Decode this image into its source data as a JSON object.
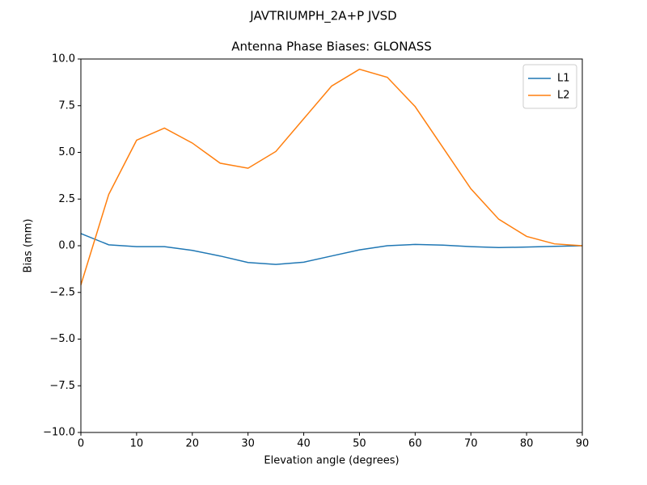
{
  "chart_data": {
    "type": "line",
    "suptitle": "JAVTRIUMPH_2A+P JVSD",
    "title": "Antenna Phase Biases: GLONASS",
    "xlabel": "Elevation angle (degrees)",
    "ylabel": "Bias (mm)",
    "x": [
      0,
      5,
      10,
      15,
      20,
      25,
      30,
      35,
      40,
      45,
      50,
      55,
      60,
      65,
      70,
      75,
      80,
      85,
      90
    ],
    "series": [
      {
        "name": "L1",
        "color": "#1f77b4",
        "values": [
          0.65,
          0.05,
          -0.05,
          -0.05,
          -0.25,
          -0.55,
          -0.9,
          -1.0,
          -0.88,
          -0.55,
          -0.22,
          0.0,
          0.07,
          0.03,
          -0.05,
          -0.1,
          -0.07,
          -0.03,
          0.0
        ]
      },
      {
        "name": "L2",
        "color": "#ff7f0e",
        "values": [
          -2.1,
          2.75,
          5.65,
          6.3,
          5.5,
          4.42,
          4.15,
          5.05,
          6.8,
          8.55,
          9.45,
          9.02,
          7.45,
          5.25,
          3.05,
          1.42,
          0.5,
          0.1,
          0.0
        ]
      }
    ],
    "xlim": [
      0,
      90
    ],
    "xticks": [
      0,
      10,
      20,
      30,
      40,
      50,
      60,
      70,
      80,
      90
    ],
    "ylim": [
      -10,
      10
    ],
    "yticks": [
      {
        "value": -10,
        "label": "−10.0"
      },
      {
        "value": -7.5,
        "label": "−7.5"
      },
      {
        "value": -5,
        "label": "−5.0"
      },
      {
        "value": -2.5,
        "label": "−2.5"
      },
      {
        "value": 0,
        "label": "0.0"
      },
      {
        "value": 2.5,
        "label": "2.5"
      },
      {
        "value": 5,
        "label": "5.0"
      },
      {
        "value": 7.5,
        "label": "7.5"
      },
      {
        "value": 10,
        "label": "10.0"
      }
    ],
    "legend": "upper right",
    "grid": false
  }
}
